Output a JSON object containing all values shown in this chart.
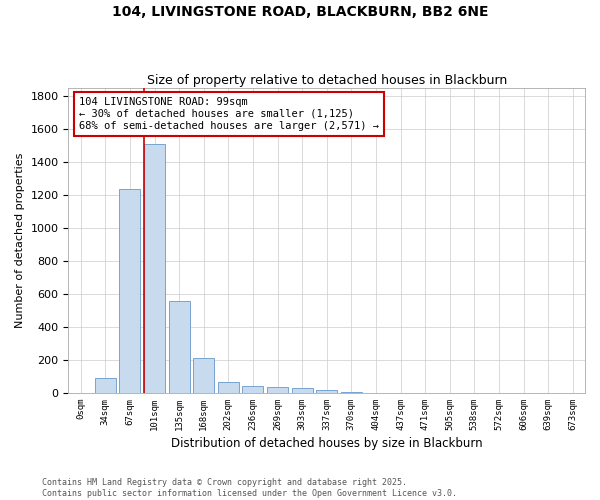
{
  "title_line1": "104, LIVINGSTONE ROAD, BLACKBURN, BB2 6NE",
  "title_line2": "Size of property relative to detached houses in Blackburn",
  "xlabel": "Distribution of detached houses by size in Blackburn",
  "ylabel": "Number of detached properties",
  "bar_color": "#c8daed",
  "bar_edge_color": "#6699cc",
  "categories": [
    "0sqm",
    "34sqm",
    "67sqm",
    "101sqm",
    "135sqm",
    "168sqm",
    "202sqm",
    "236sqm",
    "269sqm",
    "303sqm",
    "337sqm",
    "370sqm",
    "404sqm",
    "437sqm",
    "471sqm",
    "505sqm",
    "538sqm",
    "572sqm",
    "606sqm",
    "639sqm",
    "673sqm"
  ],
  "values": [
    0,
    90,
    1235,
    1510,
    560,
    210,
    65,
    45,
    35,
    27,
    20,
    8,
    0,
    0,
    0,
    0,
    0,
    0,
    0,
    0,
    0
  ],
  "annotation_text": "104 LIVINGSTONE ROAD: 99sqm\n← 30% of detached houses are smaller (1,125)\n68% of semi-detached houses are larger (2,571) →",
  "annotation_box_color": "#ffffff",
  "annotation_box_edge_color": "#cc0000",
  "vline_color": "#cc0000",
  "vline_bin_index": 3,
  "footer_line1": "Contains HM Land Registry data © Crown copyright and database right 2025.",
  "footer_line2": "Contains public sector information licensed under the Open Government Licence v3.0.",
  "ylim": [
    0,
    1850
  ],
  "yticks": [
    0,
    200,
    400,
    600,
    800,
    1000,
    1200,
    1400,
    1600,
    1800
  ],
  "grid_color": "#cccccc",
  "background_color": "#ffffff",
  "plot_bg_color": "#ffffff"
}
